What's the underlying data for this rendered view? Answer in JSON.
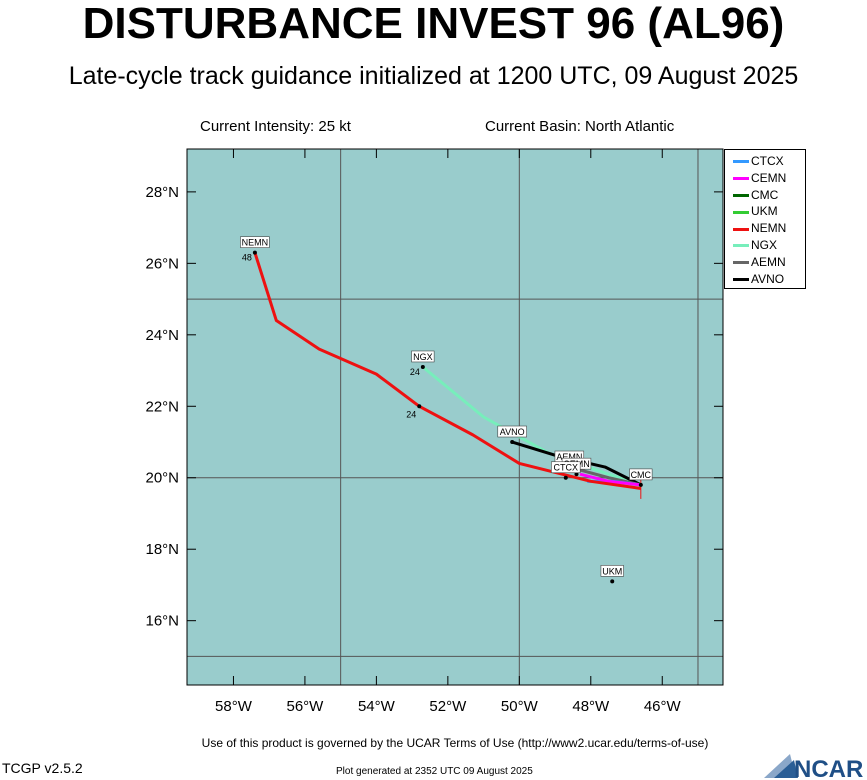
{
  "header": {
    "title": "DISTURBANCE INVEST 96 (AL96)",
    "subtitle": "Late-cycle track guidance initialized at 1200 UTC, 09 August 2025",
    "current_intensity": "Current Intensity: 25 kt",
    "current_basin": "Current Basin: North Atlantic"
  },
  "map": {
    "ocean_color": "#99cccc",
    "lat_range": [
      14.2,
      29.2
    ],
    "lon_range": [
      -59.3,
      -44.3
    ],
    "lat_ticks": [
      {
        "value": 16,
        "label": "16°N"
      },
      {
        "value": 18,
        "label": "18°N"
      },
      {
        "value": 20,
        "label": "20°N"
      },
      {
        "value": 22,
        "label": "22°N"
      },
      {
        "value": 24,
        "label": "24°N"
      },
      {
        "value": 26,
        "label": "26°N"
      },
      {
        "value": 28,
        "label": "28°N"
      }
    ],
    "lon_ticks": [
      {
        "value": -58,
        "label": "58°W"
      },
      {
        "value": -56,
        "label": "56°W"
      },
      {
        "value": -54,
        "label": "54°W"
      },
      {
        "value": -52,
        "label": "52°W"
      },
      {
        "value": -50,
        "label": "50°W"
      },
      {
        "value": -48,
        "label": "48°W"
      },
      {
        "value": -46,
        "label": "46°W"
      }
    ],
    "grid_lons": [
      -55,
      -50,
      -45
    ],
    "grid_lats": [
      15,
      20,
      25
    ]
  },
  "legend": {
    "items": [
      {
        "name": "CTCX",
        "color": "#3399ff"
      },
      {
        "name": "CEMN",
        "color": "#ff00ff"
      },
      {
        "name": "CMC",
        "color": "#006600"
      },
      {
        "name": "UKM",
        "color": "#33cc33"
      },
      {
        "name": "NEMN",
        "color": "#ee1111"
      },
      {
        "name": "NGX",
        "color": "#77eebb"
      },
      {
        "name": "AEMN",
        "color": "#666666"
      },
      {
        "name": "AVNO",
        "color": "#000000"
      }
    ]
  },
  "tracks": [
    {
      "name": "NGX",
      "color": "#77eebb",
      "points": [
        [
          -46.6,
          19.8
        ],
        [
          -47.8,
          20.2
        ],
        [
          -49.2,
          20.7
        ],
        [
          -51.0,
          21.7
        ],
        [
          -52.7,
          23.1
        ]
      ]
    },
    {
      "name": "AVNO",
      "color": "#000000",
      "points": [
        [
          -46.6,
          19.8
        ],
        [
          -47.6,
          20.3
        ],
        [
          -48.9,
          20.6
        ],
        [
          -50.2,
          21.0
        ]
      ]
    },
    {
      "name": "AEMN",
      "color": "#666666",
      "points": [
        [
          -46.6,
          19.8
        ],
        [
          -47.5,
          20.0
        ],
        [
          -48.6,
          20.3
        ]
      ]
    },
    {
      "name": "CTCX",
      "color": "#3399ff",
      "points": [
        [
          -46.6,
          19.8
        ],
        [
          -47.4,
          19.9
        ],
        [
          -48.1,
          19.9
        ]
      ]
    },
    {
      "name": "CEMN",
      "color": "#ff00ff",
      "points": [
        [
          -46.6,
          19.8
        ],
        [
          -47.5,
          19.9
        ],
        [
          -48.3,
          20.1
        ]
      ]
    },
    {
      "name": "NEMN",
      "color": "#ee1111",
      "points": [
        [
          -46.6,
          19.7
        ],
        [
          -48.0,
          19.9
        ],
        [
          -50.0,
          20.4
        ],
        [
          -51.3,
          21.2
        ],
        [
          -52.8,
          22.0
        ],
        [
          -54.0,
          22.9
        ],
        [
          -55.6,
          23.6
        ],
        [
          -56.8,
          24.4
        ],
        [
          -57.4,
          26.3
        ]
      ]
    }
  ],
  "track_labels": [
    {
      "text": "NEMN",
      "lon": -57.4,
      "lat": 26.3,
      "hour": "48"
    },
    {
      "text": "NGX",
      "lon": -52.7,
      "lat": 23.1,
      "hour": "24"
    },
    {
      "text": "AVNO",
      "lon": -50.2,
      "lat": 21.0,
      "hour": ""
    },
    {
      "text": "AEMN",
      "lon": -48.6,
      "lat": 20.3,
      "hour": ""
    },
    {
      "text": "CEMN",
      "lon": -48.4,
      "lat": 20.1,
      "hour": ""
    },
    {
      "text": "CTCX",
      "lon": -48.7,
      "lat": 20.0,
      "hour": ""
    },
    {
      "text": "CMC",
      "lon": -46.6,
      "lat": 19.8,
      "hour": ""
    },
    {
      "text": "UKM",
      "lon": -47.4,
      "lat": 17.1,
      "hour": ""
    }
  ],
  "hour_markers": [
    {
      "text": "24",
      "lon": -52.8,
      "lat": 22.0
    }
  ],
  "footer": {
    "terms": "Use of this product is governed by the UCAR Terms of Use (http://www2.ucar.edu/terms-of-use)",
    "version": "TCGP v2.5.2",
    "generated": "Plot generated at 2352 UTC   09 August 2025",
    "logo_text": "NCAR"
  }
}
